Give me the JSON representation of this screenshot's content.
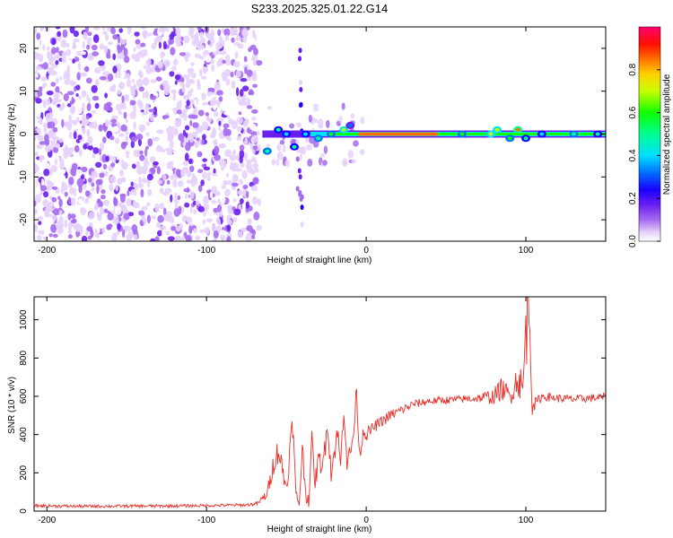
{
  "figure": {
    "title": "S233.2025.325.01.22.G14"
  },
  "chart_data": [
    {
      "type": "heatmap",
      "title": "S233.2025.325.01.22.G14",
      "xlabel": "Height of straight line (km)",
      "ylabel": "Frequency (Hz)",
      "xlim": [
        -208,
        150
      ],
      "ylim": [
        -25,
        25
      ],
      "xticks": [
        -200,
        -100,
        0,
        100
      ],
      "xtick_labels": [
        "-200",
        "-100",
        "0",
        "100"
      ],
      "yticks": [
        -20,
        -10,
        0,
        10,
        20
      ],
      "ytick_labels": [
        "-20",
        "-10",
        "0",
        "10",
        "20"
      ],
      "noise_region_x": [
        -208,
        -67
      ],
      "signal_line_frequency_hz": 0,
      "signal_start_x": -65,
      "peak_amplitude_region_x": [
        -5,
        45
      ],
      "colorbar": {
        "label": "Normalized spectral amplitude",
        "range": [
          0.0,
          1.0
        ],
        "ticks": [
          0.0,
          0.2,
          0.4,
          0.6,
          0.8
        ],
        "tick_labels": [
          "0.0",
          "0.2",
          "0.4",
          "0.6",
          "0.8"
        ],
        "colormap": [
          "#ffffff",
          "#c9a8f0",
          "#7b1fe0",
          "#1a00ff",
          "#00d8ff",
          "#00ff30",
          "#e6ff00",
          "#ff9900",
          "#ff0000",
          "#ff0066"
        ]
      }
    },
    {
      "type": "line",
      "title": "",
      "xlabel": "Height of straight line (km)",
      "ylabel": "SNR (10 * v/v)",
      "xlim": [
        -208,
        150
      ],
      "ylim": [
        0,
        1120
      ],
      "xticks": [
        -200,
        -100,
        0,
        100
      ],
      "xtick_labels": [
        "-200",
        "-100",
        "0",
        "100"
      ],
      "yticks": [
        0,
        200,
        400,
        600,
        800,
        1000
      ],
      "ytick_labels": [
        "0",
        "200",
        "400",
        "600",
        "800",
        "1000"
      ],
      "series": [
        {
          "name": "SNR",
          "color": "#e8302a",
          "x": [
            -208,
            -180,
            -150,
            -120,
            -90,
            -75,
            -68,
            -62,
            -58,
            -55,
            -52,
            -50,
            -48,
            -46,
            -44,
            -42,
            -40,
            -38,
            -36,
            -34,
            -32,
            -30,
            -28,
            -26,
            -24,
            -22,
            -20,
            -18,
            -16,
            -14,
            -12,
            -10,
            -8,
            -6,
            -4,
            -2,
            0,
            5,
            10,
            15,
            20,
            25,
            30,
            40,
            50,
            60,
            70,
            80,
            85,
            90,
            95,
            98,
            100,
            102,
            104,
            106,
            110,
            120,
            130,
            140,
            150
          ],
          "y": [
            28,
            25,
            26,
            27,
            30,
            32,
            40,
            90,
            250,
            320,
            200,
            120,
            300,
            460,
            80,
            40,
            330,
            100,
            60,
            360,
            150,
            260,
            250,
            310,
            470,
            200,
            300,
            420,
            230,
            560,
            260,
            300,
            400,
            620,
            280,
            420,
            400,
            440,
            470,
            500,
            520,
            540,
            560,
            575,
            580,
            585,
            590,
            600,
            640,
            600,
            700,
            620,
            950,
            1110,
            580,
            560,
            600,
            590,
            585,
            590,
            595
          ],
          "noise_amplitude": [
            8,
            8,
            8,
            8,
            8,
            8,
            10,
            30,
            60,
            70,
            60,
            50,
            70,
            80,
            40,
            30,
            70,
            50,
            40,
            60,
            50,
            60,
            60,
            60,
            70,
            60,
            60,
            60,
            60,
            70,
            60,
            50,
            50,
            60,
            40,
            40,
            35,
            30,
            30,
            30,
            25,
            25,
            22,
            20,
            20,
            20,
            22,
            45,
            60,
            50,
            90,
            120,
            220,
            260,
            80,
            35,
            22,
            22,
            22,
            22,
            22
          ]
        }
      ]
    }
  ]
}
